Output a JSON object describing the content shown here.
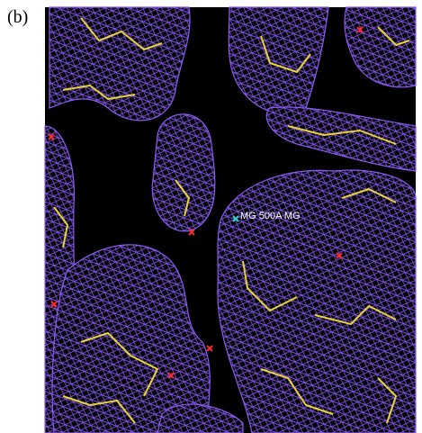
{
  "panel_label": "(b)",
  "annotation": "MG 500A MG"
}
